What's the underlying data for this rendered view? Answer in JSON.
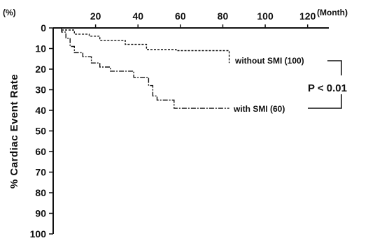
{
  "chart_data": {
    "type": "line",
    "y_unit": "(%)",
    "x_unit": "(Month)",
    "ylabel": "% Cardiac Event Rate",
    "xlim": [
      0,
      130
    ],
    "ylim": [
      0,
      100
    ],
    "y_inverted": true,
    "xticks": [
      0,
      20,
      40,
      60,
      80,
      100,
      120
    ],
    "yticks": [
      0,
      10,
      20,
      30,
      40,
      50,
      60,
      70,
      80,
      90,
      100
    ],
    "series": [
      {
        "name": "without SMI (100)",
        "style": "dashed",
        "steps": [
          [
            0,
            0
          ],
          [
            4,
            0
          ],
          [
            4,
            1
          ],
          [
            10,
            1
          ],
          [
            10,
            3
          ],
          [
            17,
            3
          ],
          [
            17,
            4
          ],
          [
            22,
            4
          ],
          [
            22,
            6
          ],
          [
            34,
            6
          ],
          [
            34,
            8
          ],
          [
            44,
            8
          ],
          [
            44,
            10.5
          ],
          [
            58,
            10.5
          ],
          [
            58,
            11
          ],
          [
            83,
            11
          ],
          [
            83,
            17
          ]
        ]
      },
      {
        "name": "with SMI (60)",
        "style": "dashdot",
        "steps": [
          [
            0,
            0
          ],
          [
            4,
            0
          ],
          [
            4,
            2
          ],
          [
            6,
            2
          ],
          [
            6,
            5
          ],
          [
            8,
            5
          ],
          [
            8,
            9
          ],
          [
            10,
            9
          ],
          [
            10,
            12
          ],
          [
            14,
            12
          ],
          [
            14,
            14
          ],
          [
            18,
            14
          ],
          [
            18,
            17
          ],
          [
            22,
            17
          ],
          [
            22,
            19
          ],
          [
            27,
            19
          ],
          [
            27,
            21
          ],
          [
            38,
            21
          ],
          [
            38,
            24
          ],
          [
            45,
            24
          ],
          [
            45,
            28
          ],
          [
            47,
            28
          ],
          [
            47,
            33
          ],
          [
            49,
            33
          ],
          [
            49,
            35
          ],
          [
            57,
            35
          ],
          [
            57,
            39
          ],
          [
            83,
            39
          ]
        ]
      }
    ],
    "annotation": "P < 0.01"
  }
}
